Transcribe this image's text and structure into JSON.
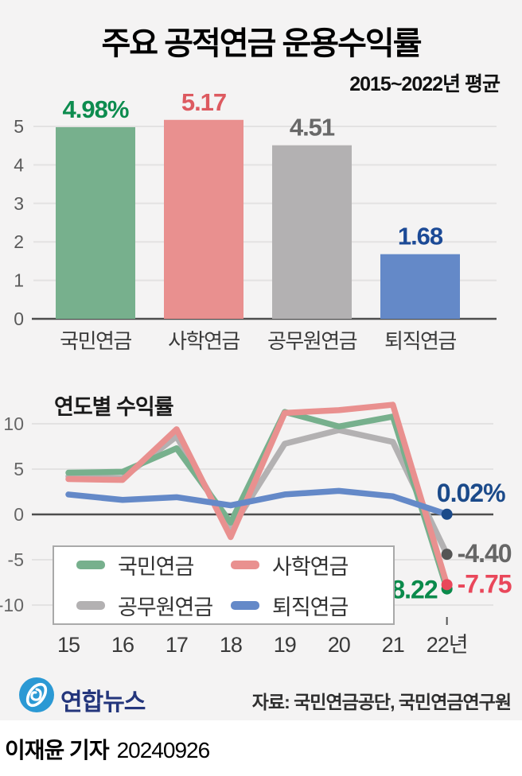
{
  "header": {
    "title": "주요 공적연금 운용수익률",
    "subtitle": "2015~2022년 평균"
  },
  "colors": {
    "background": "#f4f3f3",
    "grid_light": "#e3e2e2",
    "axis_dark": "#4d4d4d",
    "tick_text": "#5a5a5a",
    "category_text": "#3a3a3a"
  },
  "chart_data": [
    {
      "type": "bar",
      "title": "2015~2022년 평균",
      "categories": [
        "국민연금",
        "사학연금",
        "공무원연금",
        "퇴직연금"
      ],
      "values": [
        4.98,
        5.17,
        4.51,
        1.68
      ],
      "value_labels": [
        "4.98%",
        "5.17",
        "4.51",
        "1.68"
      ],
      "bar_colors": [
        "#77b08d",
        "#e9908f",
        "#b3b1b2",
        "#6489c8"
      ],
      "label_colors": [
        "#0d8c4f",
        "#dd5a60",
        "#686868",
        "#1c4a96"
      ],
      "xlabel": "",
      "ylabel": "",
      "ylim": [
        0,
        5
      ],
      "yticks": [
        0,
        1,
        2,
        3,
        4,
        5
      ],
      "grid": true
    },
    {
      "type": "line",
      "title": "연도별 수익률",
      "x_labels": [
        "15",
        "16",
        "17",
        "18",
        "19",
        "20",
        "21",
        "22년"
      ],
      "ylim": [
        -12,
        13
      ],
      "yticks": [
        -10,
        -5,
        0,
        5,
        10
      ],
      "grid": true,
      "legend_position": "bottom-left-box",
      "draw_order": [
        2,
        0,
        1,
        3
      ],
      "series": [
        {
          "name": "국민연금",
          "color": "#77b08d",
          "dot_color": "#0a8a4b",
          "end_label": "-8.22",
          "end_label_color": "#0a8a4b",
          "values": [
            4.6,
            4.7,
            7.3,
            -0.9,
            11.3,
            9.7,
            10.8,
            -8.22
          ]
        },
        {
          "name": "사학연금",
          "color": "#e9908f",
          "dot_color": "#e9475a",
          "end_label": "-7.75",
          "end_label_color": "#e9475a",
          "values": [
            3.9,
            3.8,
            9.4,
            -2.5,
            11.2,
            11.5,
            12.1,
            -7.75
          ]
        },
        {
          "name": "공무원연금",
          "color": "#b3b1b2",
          "dot_color": "#555555",
          "end_label": "-4.40",
          "end_label_color": "#666666",
          "values": [
            4.2,
            4.0,
            8.6,
            -1.7,
            7.8,
            9.3,
            8.0,
            -4.4
          ]
        },
        {
          "name": "퇴직연금",
          "color": "#6489c8",
          "dot_color": "#1b4a8a",
          "end_label": "0.02%",
          "end_label_color": "#1b4a8a",
          "values": [
            2.2,
            1.6,
            1.9,
            1.0,
            2.2,
            2.6,
            2.0,
            0.02
          ]
        }
      ]
    }
  ],
  "footer": {
    "logo_text": "연합뉴스",
    "logo_color": "#2b99d4",
    "source": "자료: 국민연금공단, 국민연금연구원"
  },
  "byline": {
    "reporter": "이재윤 기자",
    "date": "20240926"
  }
}
